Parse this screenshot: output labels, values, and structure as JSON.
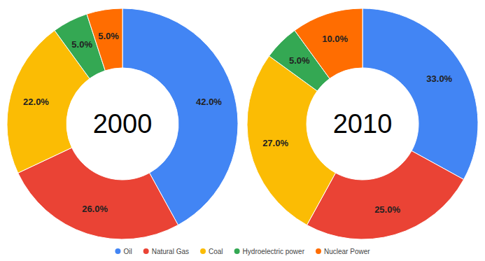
{
  "chart_data": [
    {
      "type": "pie",
      "title": "2000",
      "categories": [
        "Oil",
        "Natural Gas",
        "Coal",
        "Hydroelectric power",
        "Nuclear Power"
      ],
      "values": [
        42,
        26,
        22,
        5,
        5
      ],
      "value_labels": [
        "42.0%",
        "26.0%",
        "22.0%",
        "5.0%",
        "5.0%"
      ],
      "colors": [
        "#4285f4",
        "#ea4335",
        "#fbbc04",
        "#34a853",
        "#ff6d01"
      ],
      "data_labels": true,
      "legend": "bottom"
    },
    {
      "type": "pie",
      "title": "2010",
      "categories": [
        "Oil",
        "Natural Gas",
        "Coal",
        "Hydroelectric power",
        "Nuclear Power"
      ],
      "values": [
        33,
        25,
        27,
        5,
        10
      ],
      "value_labels": [
        "33.0%",
        "25.0%",
        "27.0%",
        "5.0%",
        "10.0%"
      ],
      "colors": [
        "#4285f4",
        "#ea4335",
        "#fbbc04",
        "#34a853",
        "#ff6d01"
      ],
      "data_labels": true,
      "legend": "bottom"
    }
  ]
}
